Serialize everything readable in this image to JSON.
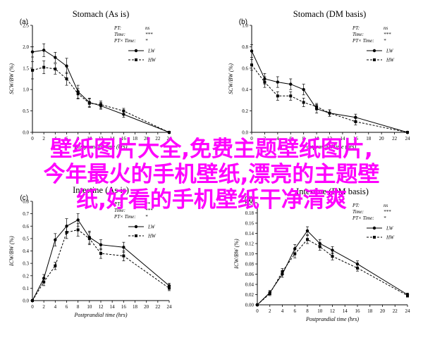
{
  "overlay_lines": [
    "壁纸图片大全,免费主题壁纸图片,",
    "今年最火的手机壁纸,漂亮的主题壁",
    "纸,好看的手机壁纸干净清爽"
  ],
  "colors": {
    "overlay": "#ff00ff",
    "ink": "#000000"
  },
  "chart_data": [
    {
      "type": "line",
      "panel_letter": "(a)",
      "title": "Stomach (As is)",
      "xlabel": "Postprandial time (hrs)",
      "ylabel": "SCW/BW (%)",
      "xlim": [
        0,
        24
      ],
      "ylim": [
        0,
        2.5
      ],
      "xticks": [
        0,
        2,
        4,
        6,
        8,
        10,
        12,
        14,
        16,
        18,
        20,
        22,
        24
      ],
      "yticks": [
        0,
        0.5,
        1.0,
        1.5,
        2.0,
        2.5
      ],
      "ytick_labels": [
        "0.0",
        "0.5",
        "1.0",
        "1.5",
        "2.0",
        "2.5"
      ],
      "stats": [
        {
          "label": "PT:",
          "value": "ns"
        },
        {
          "label": "Time:",
          "value": "***"
        },
        {
          "label": "PT× Time:",
          "value": "*"
        }
      ],
      "legend_position": "top-right",
      "series": [
        {
          "name": "LW",
          "style": "solid",
          "x": [
            0,
            2,
            4,
            6,
            8,
            10,
            12,
            16,
            24
          ],
          "y": [
            1.88,
            1.92,
            1.75,
            1.55,
            0.95,
            0.7,
            0.62,
            0.42,
            0.0
          ],
          "err": [
            0.12,
            0.15,
            0.12,
            0.18,
            0.15,
            0.1,
            0.08,
            0.07,
            0.0
          ]
        },
        {
          "name": "HW",
          "style": "dashed",
          "x": [
            0,
            2,
            4,
            6,
            8,
            10,
            12,
            16,
            24
          ],
          "y": [
            1.45,
            1.52,
            1.48,
            1.25,
            0.9,
            0.68,
            0.65,
            0.5,
            0.0
          ],
          "err": [
            0.2,
            0.15,
            0.12,
            0.15,
            0.12,
            0.1,
            0.08,
            0.06,
            0.0
          ]
        }
      ]
    },
    {
      "type": "line",
      "panel_letter": "(b)",
      "title": "Stomach (DM basis)",
      "xlabel": "Postprandial time (hrs)",
      "ylabel": "SCW/BW (%)",
      "xlim": [
        0,
        24
      ],
      "ylim": [
        0,
        1.0
      ],
      "xticks": [
        0,
        2,
        4,
        6,
        8,
        10,
        12,
        14,
        16,
        18,
        20,
        22,
        24
      ],
      "yticks": [
        0,
        0.2,
        0.4,
        0.6,
        0.8,
        1.0
      ],
      "ytick_labels": [
        "0.0",
        "0.2",
        "0.4",
        "0.6",
        "0.8",
        "1.0"
      ],
      "stats": [
        {
          "label": "PT:",
          "value": "ns"
        },
        {
          "label": "Time:",
          "value": "***"
        },
        {
          "label": "PT× Time:",
          "value": "*"
        }
      ],
      "legend_position": "top-right",
      "series": [
        {
          "name": "LW",
          "style": "solid",
          "x": [
            0,
            2,
            4,
            6,
            8,
            10,
            12,
            16,
            24
          ],
          "y": [
            0.76,
            0.5,
            0.47,
            0.45,
            0.4,
            0.22,
            0.18,
            0.14,
            0.0
          ],
          "err": [
            0.06,
            0.05,
            0.05,
            0.05,
            0.05,
            0.04,
            0.03,
            0.03,
            0.0
          ]
        },
        {
          "name": "HW",
          "style": "dashed",
          "x": [
            0,
            2,
            4,
            6,
            8,
            10,
            12,
            16,
            24
          ],
          "y": [
            0.63,
            0.47,
            0.34,
            0.34,
            0.28,
            0.24,
            0.18,
            0.1,
            0.0
          ],
          "err": [
            0.05,
            0.05,
            0.04,
            0.04,
            0.04,
            0.03,
            0.03,
            0.03,
            0.0
          ]
        }
      ]
    },
    {
      "type": "line",
      "panel_letter": "(c)",
      "title": "Intestine (As is)",
      "xlabel": "Postprandial time (hrs)",
      "ylabel": "ICW/BW (%)",
      "xlim": [
        0,
        24
      ],
      "ylim": [
        0,
        0.8
      ],
      "xticks": [
        0,
        2,
        4,
        6,
        8,
        10,
        12,
        14,
        16,
        18,
        20,
        22,
        24
      ],
      "yticks": [
        0,
        0.1,
        0.2,
        0.3,
        0.4,
        0.5,
        0.6,
        0.7,
        0.8
      ],
      "ytick_labels": [
        "0.0",
        "0.1",
        "0.2",
        "0.3",
        "0.4",
        "0.5",
        "0.6",
        "0.7",
        "0.8"
      ],
      "stats": [
        {
          "label": "PT:",
          "value": "**"
        },
        {
          "label": "Time:",
          "value": "***"
        },
        {
          "label": "PT× Time:",
          "value": "*"
        }
      ],
      "legend_position": "top-right",
      "series": [
        {
          "name": "LW",
          "style": "solid",
          "x": [
            0,
            2,
            4,
            6,
            8,
            10,
            12,
            16,
            24
          ],
          "y": [
            0.0,
            0.18,
            0.49,
            0.6,
            0.65,
            0.51,
            0.45,
            0.43,
            0.12
          ],
          "err": [
            0.0,
            0.03,
            0.05,
            0.06,
            0.05,
            0.05,
            0.04,
            0.04,
            0.02
          ]
        },
        {
          "name": "HW",
          "style": "dashed",
          "x": [
            0,
            2,
            4,
            6,
            8,
            10,
            12,
            16,
            24
          ],
          "y": [
            0.0,
            0.15,
            0.28,
            0.55,
            0.57,
            0.5,
            0.38,
            0.36,
            0.1
          ],
          "err": [
            0.0,
            0.03,
            0.03,
            0.05,
            0.05,
            0.05,
            0.04,
            0.04,
            0.02
          ]
        }
      ]
    },
    {
      "type": "line",
      "panel_letter": "(d)",
      "title": "Intestine (DM basis)",
      "xlabel": "Postprandial time (hrs)",
      "ylabel": "ICW/BW (%)",
      "xlim": [
        0,
        24
      ],
      "ylim": [
        0,
        0.2
      ],
      "xticks": [
        0,
        2,
        4,
        6,
        8,
        10,
        12,
        14,
        16,
        18,
        20,
        22,
        24
      ],
      "yticks": [
        0,
        0.02,
        0.04,
        0.06,
        0.08,
        0.1,
        0.12,
        0.14,
        0.16,
        0.18,
        0.2
      ],
      "ytick_labels": [
        "0.00",
        "0.02",
        "0.04",
        "0.06",
        "0.08",
        "0.10",
        "0.12",
        "0.14",
        "0.16",
        "0.18",
        "0.20"
      ],
      "stats": [
        {
          "label": "PT:",
          "value": "ns"
        },
        {
          "label": "Time:",
          "value": "***"
        },
        {
          "label": "PT× Time:",
          "value": "*"
        }
      ],
      "legend_position": "top-right",
      "series": [
        {
          "name": "LW",
          "style": "solid",
          "x": [
            0,
            2,
            4,
            6,
            8,
            10,
            12,
            16,
            24
          ],
          "y": [
            0.0,
            0.024,
            0.06,
            0.11,
            0.145,
            0.12,
            0.107,
            0.08,
            0.02
          ],
          "err": [
            0.0,
            0.004,
            0.006,
            0.008,
            0.008,
            0.008,
            0.007,
            0.006,
            0.003
          ]
        },
        {
          "name": "HW",
          "style": "dashed",
          "x": [
            0,
            2,
            4,
            6,
            8,
            10,
            12,
            16,
            24
          ],
          "y": [
            0.0,
            0.022,
            0.065,
            0.1,
            0.128,
            0.114,
            0.095,
            0.072,
            0.018
          ],
          "err": [
            0.0,
            0.004,
            0.006,
            0.008,
            0.008,
            0.007,
            0.007,
            0.006,
            0.003
          ]
        }
      ]
    }
  ]
}
